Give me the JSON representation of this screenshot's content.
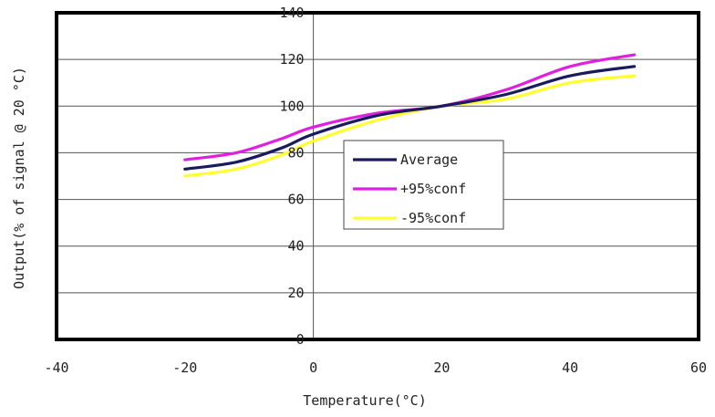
{
  "chart_data": {
    "type": "line",
    "title": "",
    "xlabel": "Temperature(°C)",
    "ylabel": "Output(% of signal @ 20 °C)",
    "xlim": [
      -40,
      60
    ],
    "ylim": [
      0,
      140
    ],
    "xticks": [
      -40,
      -20,
      0,
      20,
      40,
      60
    ],
    "yticks": [
      0,
      20,
      40,
      60,
      80,
      100,
      120,
      140
    ],
    "grid": "horizontal",
    "legend_position": "center",
    "x": [
      -20,
      -12,
      -5,
      0,
      10,
      20,
      30,
      40,
      50
    ],
    "series": [
      {
        "name": "Average",
        "color": "#1a1a5e",
        "values": [
          73,
          76,
          82,
          88,
          96,
          100,
          105,
          113,
          117
        ]
      },
      {
        "name": "+95%conf",
        "color": "#e020e0",
        "values": [
          77,
          80,
          86,
          91,
          97,
          100,
          107,
          117,
          122
        ]
      },
      {
        "name": "-95%conf",
        "color": "#ffff30",
        "values": [
          70,
          73,
          79,
          85,
          94,
          100,
          103,
          110,
          113
        ]
      }
    ]
  }
}
